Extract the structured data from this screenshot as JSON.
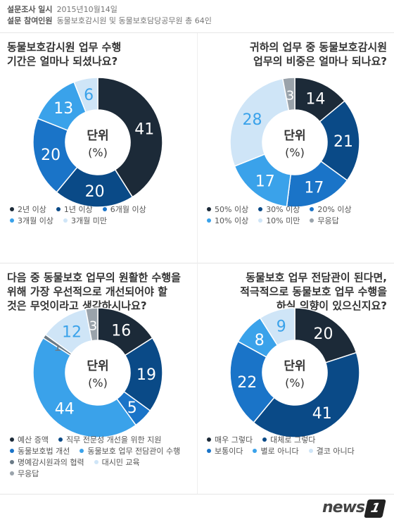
{
  "header": {
    "date_label": "설문조사 일시",
    "date_value": "2015년10월14일",
    "participants_label": "설문 참여인원",
    "participants_value": "동물보호감시원 및 동물보호담당공무원 총 64인"
  },
  "center_label": {
    "line1": "단위",
    "line2": "(%)"
  },
  "logo": {
    "text": "news",
    "mark": "1"
  },
  "chart_data": [
    {
      "type": "pie",
      "title_lines": [
        "동물보호감시원 업무 수행",
        "기간은 얼마나 되셨나요?"
      ],
      "title_align": "left",
      "slices": [
        {
          "label": "2년 이상",
          "value": 41,
          "color": "#1c2a38",
          "text_color": "#ffffff"
        },
        {
          "label": "1년 이상",
          "value": 20,
          "color": "#0a4a87",
          "text_color": "#ffffff"
        },
        {
          "label": "6개월 이상",
          "value": 20,
          "color": "#1a74c8",
          "text_color": "#ffffff"
        },
        {
          "label": "3개월 이상",
          "value": 13,
          "color": "#3aa2ea",
          "text_color": "#ffffff"
        },
        {
          "label": "3개월 미만",
          "value": 6,
          "color": "#cfe5f7",
          "text_color": "#3aa2ea"
        }
      ],
      "legend_rows": [
        [
          0,
          1,
          2
        ],
        [
          3,
          4
        ]
      ]
    },
    {
      "type": "pie",
      "title_lines": [
        "귀하의 업무 중 동물보호감시원",
        "업무의 비중은 얼마나 되나요?"
      ],
      "title_align": "right",
      "slices": [
        {
          "label": "50% 이상",
          "value": 14,
          "color": "#1c2a38",
          "text_color": "#ffffff"
        },
        {
          "label": "30% 이상",
          "value": 21,
          "color": "#0a4a87",
          "text_color": "#ffffff"
        },
        {
          "label": "20% 이상",
          "value": 17,
          "color": "#1a74c8",
          "text_color": "#ffffff"
        },
        {
          "label": "10% 이상",
          "value": 17,
          "color": "#3aa2ea",
          "text_color": "#ffffff"
        },
        {
          "label": "10% 미만",
          "value": 28,
          "color": "#cfe5f7",
          "text_color": "#3aa2ea"
        },
        {
          "label": "무응답",
          "value": 3,
          "color": "#9aa3ab",
          "text_color": "#ffffff"
        }
      ],
      "legend_rows": [
        [
          0,
          1,
          2
        ],
        [
          3,
          4,
          5
        ]
      ]
    },
    {
      "type": "pie",
      "title_lines": [
        "다음 중 동물보호 업무의 원활한 수행을",
        "위해 가장 우선적으로 개선되어야 할",
        "것은 무엇이라고 생각하시나요?"
      ],
      "title_align": "left",
      "slices": [
        {
          "label": "예산 증액",
          "value": 16,
          "color": "#1c2a38",
          "text_color": "#ffffff"
        },
        {
          "label": "직무 전문성 개선을 위한 지원",
          "value": 19,
          "color": "#0a4a87",
          "text_color": "#ffffff"
        },
        {
          "label": "동물보호법 개선",
          "value": 5,
          "color": "#1a74c8",
          "text_color": "#ffffff"
        },
        {
          "label": "동물보호 업무 전담관이 수행",
          "value": 44,
          "color": "#3aa2ea",
          "text_color": "#ffffff"
        },
        {
          "label": "명예감시원과의 협력",
          "value": 1,
          "color": "#6a7a86",
          "text_color": "#6a7a86"
        },
        {
          "label": "대시민 교육",
          "value": 12,
          "color": "#cfe5f7",
          "text_color": "#3aa2ea"
        },
        {
          "label": "무응답",
          "value": 3,
          "color": "#9aa3ab",
          "text_color": "#ffffff"
        }
      ],
      "legend_rows": [
        [
          0,
          1
        ],
        [
          2,
          3
        ],
        [
          4,
          5
        ],
        [
          6
        ]
      ]
    },
    {
      "type": "pie",
      "title_lines": [
        "동물보호 업무 전담관이 된다면,",
        "적극적으로 동물보호 업무 수행을",
        "하실 의향이 있으신지요?"
      ],
      "title_align": "right",
      "slices": [
        {
          "label": "매우 그렇다",
          "value": 20,
          "color": "#1c2a38",
          "text_color": "#ffffff"
        },
        {
          "label": "대체로 그렇다",
          "value": 41,
          "color": "#0a4a87",
          "text_color": "#ffffff"
        },
        {
          "label": "보통이다",
          "value": 22,
          "color": "#1a74c8",
          "text_color": "#ffffff"
        },
        {
          "label": "별로 아니다",
          "value": 8,
          "color": "#3aa2ea",
          "text_color": "#ffffff"
        },
        {
          "label": "결코 아니다",
          "value": 9,
          "color": "#cfe5f7",
          "text_color": "#3aa2ea"
        }
      ],
      "legend_rows": [
        [
          0,
          1
        ],
        [
          2,
          3,
          4
        ]
      ]
    }
  ]
}
